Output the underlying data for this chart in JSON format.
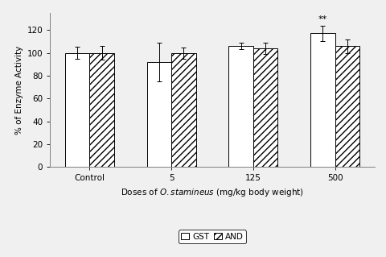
{
  "categories": [
    "Control",
    "5",
    "125",
    "500"
  ],
  "gst_values": [
    100,
    92,
    106,
    117
  ],
  "and_values": [
    100,
    99.5,
    104,
    106
  ],
  "gst_errors": [
    5,
    17,
    3,
    7
  ],
  "and_errors": [
    6,
    5,
    5,
    6
  ],
  "ylabel": "% of Enzyme Activity",
  "xlabel": "Doses of $\\mathit{O. stamineus}$ (mg/kg body weight)",
  "ylim": [
    0,
    135
  ],
  "yticks": [
    0,
    20,
    40,
    60,
    80,
    100,
    120
  ],
  "bar_width": 0.3,
  "significance_label": "**",
  "sig_bar_index": 3,
  "background_color": "#f0f0f0",
  "bar_edge_color": "#000000",
  "gst_face_color": "#ffffff",
  "and_hatch": "////",
  "legend_gst": "GST",
  "legend_and": "AND"
}
